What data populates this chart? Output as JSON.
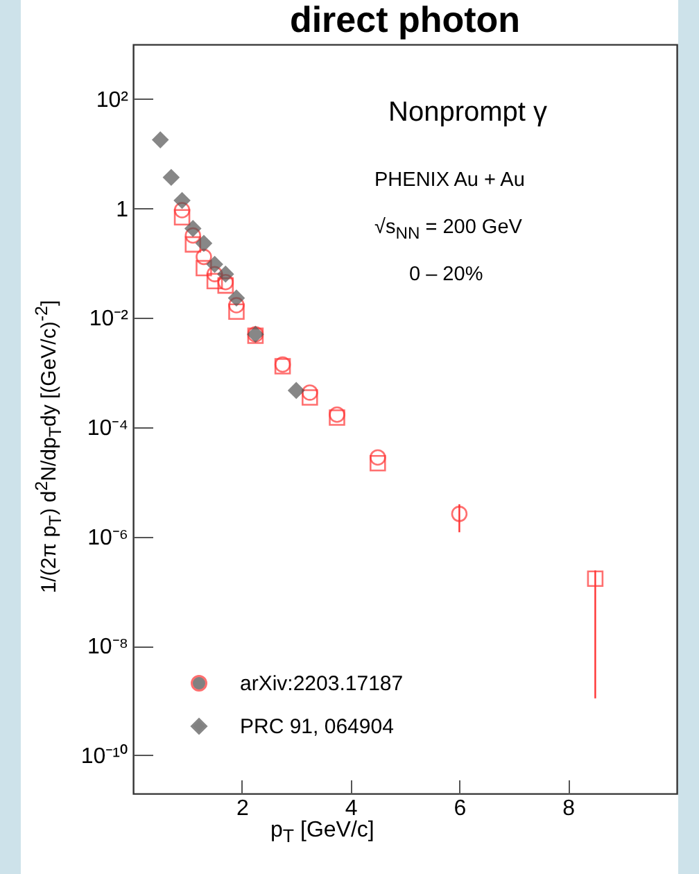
{
  "chart_data": {
    "type": "scatter",
    "title": "direct photon",
    "xlabel": "p$_{T}$ [GeV/c]",
    "ylabel": "1/(2π p$_{T}$) d$^{2}$N/dp$_{T}$dy [(GeV/c)$^{-2}$]",
    "annotations": [
      "Nonprompt γ",
      "PHENIX Au + Au",
      "√s$_{NN}$ = 200 GeV",
      "0 – 20%"
    ],
    "series": [
      {
        "name": "arXiv:2203.17187",
        "color": "#ff3333",
        "marker": "circle",
        "x": [
          0.9,
          1.1,
          1.3,
          1.5,
          1.7,
          1.9,
          2.25,
          2.75,
          3.25,
          3.75,
          4.5,
          6
        ],
        "values": [
          0.93,
          0.32,
          0.13,
          0.063,
          0.045,
          0.017,
          0.005,
          0.0014,
          0.00043,
          0.00017,
          2.8e-05,
          2.6e-06
        ],
        "errors": [
          null,
          null,
          null,
          null,
          null,
          null,
          null,
          null,
          null,
          null,
          null,
          [
            1.2e-06,
            3.9e-06
          ]
        ]
      },
      {
        "color": "#ff3333",
        "marker": "square",
        "x": [
          0.9,
          1.1,
          1.3,
          1.5,
          1.7,
          1.9,
          2.25,
          2.75,
          3.25,
          3.75,
          4.5,
          8.5
        ],
        "values": [
          0.69,
          0.22,
          0.081,
          0.047,
          0.039,
          0.013,
          0.0047,
          0.0013,
          0.00035,
          0.00015,
          2.2e-05,
          1.7e-07
        ],
        "errors": [
          null,
          null,
          null,
          null,
          null,
          null,
          null,
          null,
          null,
          null,
          null,
          [
            1.1e-09,
            2.4e-07
          ]
        ]
      },
      {
        "name": "PRC 91, 064904",
        "color": "#555555",
        "marker": "diamond",
        "x": [
          0.5,
          0.7,
          0.9,
          1.1,
          1.3,
          1.5,
          1.7,
          1.9,
          2.25,
          3.0
        ],
        "values": [
          18,
          3.7,
          1.4,
          0.43,
          0.23,
          0.095,
          0.063,
          0.023,
          0.005,
          0.00047
        ]
      }
    ],
    "xlim": [
      0,
      10
    ],
    "xticks": [
      2,
      4,
      6,
      8
    ],
    "ylim": [
      2e-11,
      1000
    ],
    "yticks": [
      {
        "value": 100,
        "label": "10²"
      },
      1,
      {
        "value": 0.01,
        "label": "10⁻²"
      },
      {
        "value": 0.0001,
        "label": "10⁻⁴"
      },
      {
        "value": 1e-06,
        "label": "10⁻⁶"
      },
      {
        "value": 1e-08,
        "label": "10⁻⁸"
      },
      {
        "value": 1e-10,
        "label": "10⁻¹⁰"
      }
    ],
    "log": "y",
    "grid": false,
    "legend": "bottom left"
  }
}
